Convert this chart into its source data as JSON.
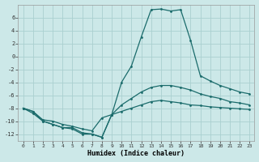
{
  "xlabel": "Humidex (Indice chaleur)",
  "background_color": "#cce8e8",
  "grid_color": "#aad0d0",
  "line_color": "#1a6b6b",
  "xlim": [
    -0.5,
    23.5
  ],
  "ylim": [
    -13,
    8
  ],
  "yticks": [
    -12,
    -10,
    -8,
    -6,
    -4,
    -2,
    0,
    2,
    4,
    6
  ],
  "xticks": [
    0,
    1,
    2,
    3,
    4,
    5,
    6,
    7,
    8,
    9,
    10,
    11,
    12,
    13,
    14,
    15,
    16,
    17,
    18,
    19,
    20,
    21,
    22,
    23
  ],
  "line1_x": [
    0,
    1,
    2,
    3,
    4,
    5,
    6,
    7,
    8,
    9,
    10,
    11,
    12,
    13,
    14,
    15,
    16,
    17,
    18,
    19,
    20,
    21,
    22,
    23
  ],
  "line1_y": [
    -8.0,
    -8.8,
    -10.0,
    -10.5,
    -11.0,
    -11.2,
    -12.0,
    -12.0,
    -12.5,
    -9.0,
    -4.0,
    -1.5,
    3.0,
    7.2,
    7.3,
    7.0,
    7.2,
    2.5,
    -3.0,
    -3.8,
    -4.5,
    -5.0,
    -5.5,
    -5.8
  ],
  "line2_x": [
    0,
    1,
    2,
    3,
    4,
    5,
    6,
    7,
    8,
    9,
    10,
    11,
    12,
    13,
    14,
    15,
    16,
    17,
    18,
    19,
    20,
    21,
    22,
    23
  ],
  "line2_y": [
    -8.0,
    -8.5,
    -9.8,
    -10.0,
    -10.5,
    -10.8,
    -11.2,
    -11.5,
    -9.5,
    -9.0,
    -8.5,
    -8.0,
    -7.5,
    -7.0,
    -6.8,
    -7.0,
    -7.2,
    -7.5,
    -7.6,
    -7.8,
    -7.9,
    -8.0,
    -8.1,
    -8.2
  ],
  "line3_x": [
    0,
    1,
    2,
    3,
    4,
    5,
    6,
    7,
    8,
    9,
    10,
    11,
    12,
    13,
    14,
    15,
    16,
    17,
    18,
    19,
    20,
    21,
    22,
    23
  ],
  "line3_y": [
    -8.0,
    -8.5,
    -10.0,
    -10.5,
    -11.0,
    -11.0,
    -11.8,
    -12.0,
    -12.5,
    -9.0,
    -7.5,
    -6.5,
    -5.5,
    -4.8,
    -4.5,
    -4.5,
    -4.8,
    -5.2,
    -5.8,
    -6.2,
    -6.5,
    -7.0,
    -7.2,
    -7.5
  ]
}
